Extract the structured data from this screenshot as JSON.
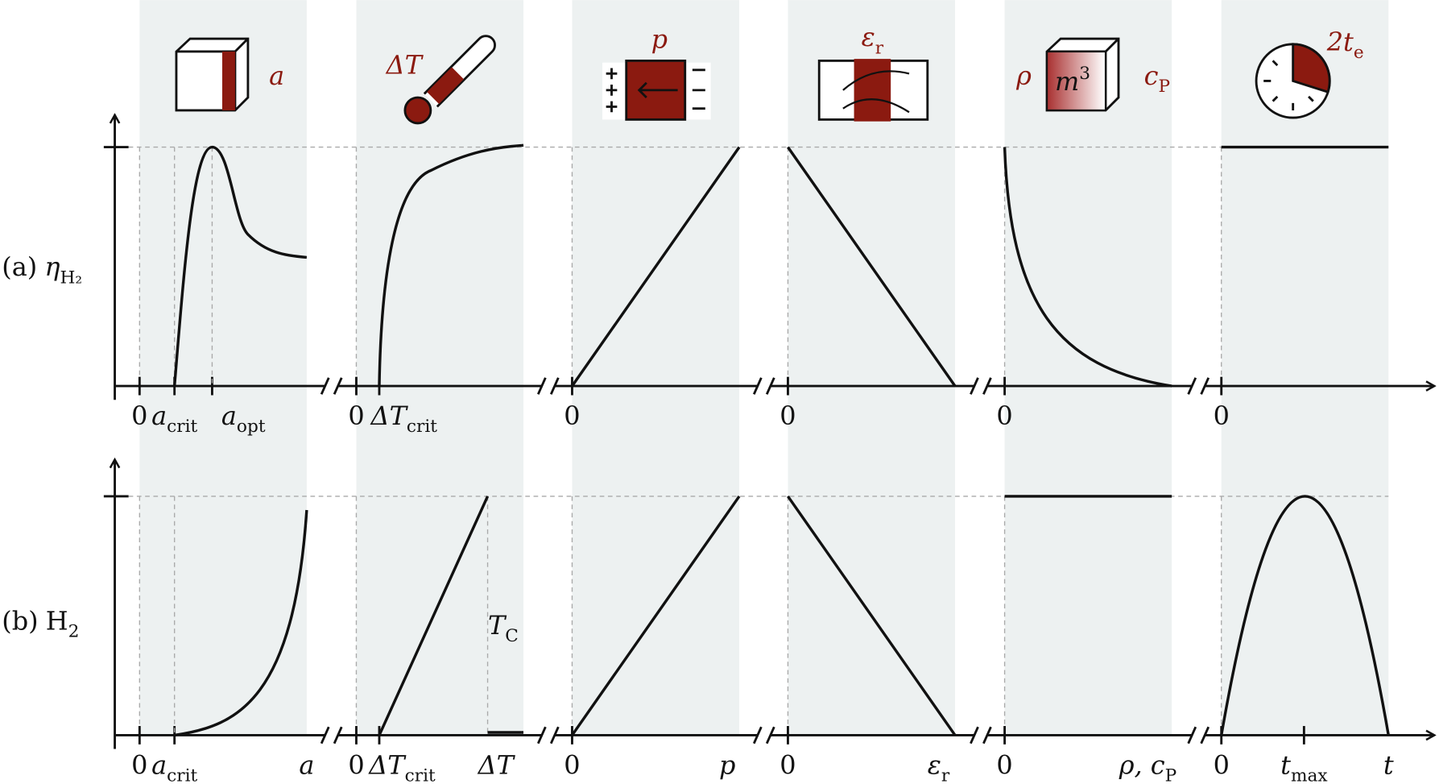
{
  "rows": [
    {
      "label": "(a)",
      "symbol": {
        "text": "η",
        "sub": "H₂"
      },
      "ticks": [
        [
          {
            "text": "0"
          },
          {
            "text": "a",
            "sub": "crit"
          },
          {
            "text": "a",
            "sub": "opt"
          }
        ],
        [
          {
            "text": "0"
          },
          {
            "text": "ΔT",
            "sub": "crit"
          }
        ],
        [
          {
            "text": "0"
          }
        ],
        [
          {
            "text": "0"
          }
        ],
        [
          {
            "text": "0"
          }
        ],
        [
          {
            "text": "0"
          }
        ]
      ]
    },
    {
      "label": "(b)",
      "symbol": {
        "text": "H",
        "sub": "2"
      },
      "ticks": [
        [
          {
            "text": "0"
          },
          {
            "text": "a",
            "sub": "crit"
          },
          {
            "text": "a"
          }
        ],
        [
          {
            "text": "0"
          },
          {
            "text": "ΔT",
            "sub": "crit"
          },
          {
            "text": "ΔT"
          }
        ],
        [
          {
            "text": "0"
          },
          {
            "text": "p"
          }
        ],
        [
          {
            "text": "0"
          },
          {
            "text": "ε",
            "sub": "r"
          }
        ],
        [
          {
            "text": "0"
          },
          {
            "text": "ρ, c",
            "sub": "P"
          }
        ],
        [
          {
            "text": "0"
          },
          {
            "text": "t",
            "sub": "max"
          },
          {
            "text": "t"
          }
        ]
      ],
      "annotation": {
        "text": "T",
        "sub": "C"
      }
    }
  ],
  "icons": [
    {
      "text": "a"
    },
    {
      "text": "ΔT"
    },
    {
      "text": "p"
    },
    {
      "text": "ε",
      "sub": "r"
    },
    {
      "text": "ρ"
    },
    {
      "text": "m",
      "sup": "3"
    },
    {
      "text": "c",
      "sub": "P"
    },
    {
      "text": "2t",
      "sub": "e"
    }
  ]
}
